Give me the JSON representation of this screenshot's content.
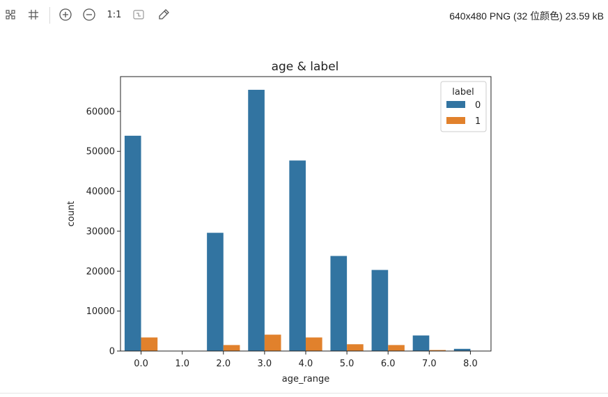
{
  "toolbar": {
    "fit_icon": "fit-to-window-icon",
    "grid_icon": "grid-icon",
    "zoom_in_icon": "zoom-in-icon",
    "zoom_out_icon": "zoom-out-icon",
    "actual_size_label": "1:1",
    "actual_size_icon": "actual-size-icon",
    "color_picker_icon": "eyedropper-icon",
    "file_info": "640x480 PNG (32 位颜色) 23.59 kB"
  },
  "colors": {
    "series_0": "#3274a1",
    "series_1": "#e1812c"
  },
  "chart_data": {
    "type": "bar",
    "title": "age & label",
    "xlabel": "age_range",
    "ylabel": "count",
    "categories": [
      "0.0",
      "1.0",
      "2.0",
      "3.0",
      "4.0",
      "5.0",
      "6.0",
      "7.0",
      "8.0"
    ],
    "series": [
      {
        "name": "0",
        "values": [
          53900,
          80,
          29600,
          65400,
          47700,
          23800,
          20300,
          3900,
          550
        ]
      },
      {
        "name": "1",
        "values": [
          3400,
          20,
          1500,
          4100,
          3400,
          1700,
          1500,
          250,
          40
        ]
      }
    ],
    "ylim": [
      0,
      68700
    ],
    "yticks": [
      "0",
      "10000",
      "20000",
      "30000",
      "40000",
      "50000",
      "60000"
    ],
    "legend_title": "label",
    "legend_position": "top-right",
    "grid": false
  }
}
